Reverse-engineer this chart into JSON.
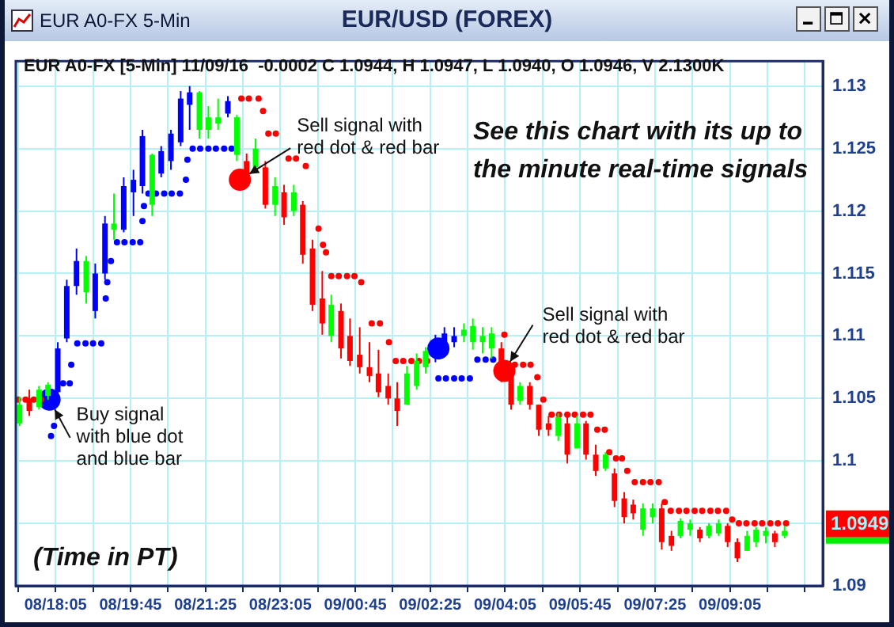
{
  "chart_data": {
    "type": "candlestick",
    "title": "EUR/USD (FOREX)",
    "subtitle": "EUR A0-FX [5-Min] 11/09/16  -0.0002 C 1.0944, H 1.0947, L 1.0940, O 1.0946, V 2.1300K",
    "annotations": [
      "EUR A0-FX 5-Min",
      "See this chart with its up to\nthe minute real-time signals",
      "(Time in PT)",
      {
        "text": "Buy signal\nwith blue dot\nand blue bar",
        "x": "--11-08T17:57",
        "y": 1.1049
      },
      {
        "text": "Sell signal with\nred dot & red bar",
        "x": "--11-08T22:11",
        "y": 1.1225
      },
      {
        "text": "Sell signal with\nred dot & red bar",
        "x": "--11-09T04:04",
        "y": 1.1072
      },
      {
        "text": "1.0949",
        "y": 1.0949
      }
    ],
    "x": [
      "--11-08T17:17",
      "--11-08T17:30",
      "--11-08T17:43",
      "--11-08T17:55",
      "--11-08T18:08",
      "--11-08T18:20",
      "--11-08T18:33",
      "--11-08T18:46",
      "--11-08T18:58",
      "--11-08T19:11",
      "--11-08T19:23",
      "--11-08T19:36",
      "--11-08T19:49",
      "--11-08T20:01",
      "--11-08T20:14",
      "--11-08T20:26",
      "--11-08T20:39",
      "--11-08T20:52",
      "--11-08T21:04",
      "--11-08T21:17",
      "--11-08T21:29",
      "--11-08T21:42",
      "--11-08T21:55",
      "--11-08T22:07",
      "--11-08T22:20",
      "--11-08T22:32",
      "--11-08T22:45",
      "--11-08T22:58",
      "--11-08T23:10",
      "--11-08T23:23",
      "--11-08T23:35",
      "--11-08T23:48",
      "--11-09T00:01",
      "--11-09T00:13",
      "--11-09T00:26",
      "--11-09T00:38",
      "--11-09T00:51",
      "--11-09T01:04",
      "--11-09T01:16",
      "--11-09T01:29",
      "--11-09T01:41",
      "--11-09T01:54",
      "--11-09T02:07",
      "--11-09T02:19",
      "--11-09T02:32",
      "--11-09T02:44",
      "--11-09T02:57",
      "--11-09T03:10",
      "--11-09T03:22",
      "--11-09T03:35",
      "--11-09T03:47",
      "--11-09T04:00",
      "--11-09T04:13",
      "--11-09T04:25",
      "--11-09T04:38",
      "--11-09T04:50",
      "--11-09T05:03",
      "--11-09T05:16",
      "--11-09T05:28",
      "--11-09T05:41",
      "--11-09T05:53",
      "--11-09T06:06",
      "--11-09T06:19",
      "--11-09T06:31",
      "--11-09T06:44",
      "--11-09T06:56",
      "--11-09T07:09",
      "--11-09T07:22",
      "--11-09T07:34",
      "--11-09T07:47",
      "--11-09T07:59",
      "--11-09T08:12",
      "--11-09T08:25",
      "--11-09T08:37",
      "--11-09T08:50",
      "--11-09T09:02",
      "--11-09T09:15",
      "--11-09T09:28",
      "--11-09T09:40",
      "--11-09T09:53",
      "--11-09T10:05",
      "--11-09T10:18"
    ],
    "ohlc": [
      [
        1.103,
        1.1051,
        1.1028,
        1.1045
      ],
      [
        1.105,
        1.1057,
        1.1036,
        1.104
      ],
      [
        1.1043,
        1.106,
        1.1041,
        1.1057
      ],
      [
        1.1052,
        1.1063,
        1.1049,
        1.1061
      ],
      [
        1.1055,
        1.1095,
        1.1051,
        1.109
      ],
      [
        1.1098,
        1.1145,
        1.1095,
        1.114
      ],
      [
        1.114,
        1.117,
        1.1133,
        1.116
      ],
      [
        1.1135,
        1.1164,
        1.1126,
        1.116
      ],
      [
        1.112,
        1.1158,
        1.1114,
        1.115
      ],
      [
        1.115,
        1.1196,
        1.1145,
        1.119
      ],
      [
        1.1185,
        1.1214,
        1.1177,
        1.119
      ],
      [
        1.1185,
        1.1227,
        1.1183,
        1.122
      ],
      [
        1.1215,
        1.1233,
        1.1196,
        1.1225
      ],
      [
        1.122,
        1.1265,
        1.1214,
        1.126
      ],
      [
        1.1205,
        1.1246,
        1.1196,
        1.1245
      ],
      [
        1.123,
        1.1252,
        1.1227,
        1.1248
      ],
      [
        1.124,
        1.1265,
        1.1233,
        1.1262
      ],
      [
        1.1255,
        1.1296,
        1.1252,
        1.129
      ],
      [
        1.1285,
        1.13,
        1.1265,
        1.1295
      ],
      [
        1.1265,
        1.1296,
        1.1258,
        1.1295
      ],
      [
        1.1265,
        1.1284,
        1.1258,
        1.1275
      ],
      [
        1.127,
        1.129,
        1.1265,
        1.1275
      ],
      [
        1.1278,
        1.1292,
        1.1275,
        1.1288
      ],
      [
        1.1245,
        1.1277,
        1.124,
        1.1275
      ],
      [
        1.124,
        1.1246,
        1.1221,
        1.1225
      ],
      [
        1.1235,
        1.1258,
        1.1233,
        1.125
      ],
      [
        1.1235,
        1.124,
        1.1202,
        1.1205
      ],
      [
        1.1205,
        1.1227,
        1.1196,
        1.122
      ],
      [
        1.1215,
        1.1221,
        1.1189,
        1.1195
      ],
      [
        1.12,
        1.1221,
        1.1196,
        1.1215
      ],
      [
        1.1205,
        1.1208,
        1.1158,
        1.1165
      ],
      [
        1.117,
        1.1177,
        1.112,
        1.1125
      ],
      [
        1.113,
        1.1152,
        1.1101,
        1.111
      ],
      [
        1.11,
        1.1133,
        1.1095,
        1.1125
      ],
      [
        1.112,
        1.1126,
        1.1082,
        1.109
      ],
      [
        1.11,
        1.1114,
        1.1076,
        1.108
      ],
      [
        1.1085,
        1.1107,
        1.107,
        1.1075
      ],
      [
        1.1075,
        1.1095,
        1.1063,
        1.1068
      ],
      [
        1.107,
        1.1089,
        1.1051,
        1.1055
      ],
      [
        1.106,
        1.107,
        1.1045,
        1.105
      ],
      [
        1.105,
        1.1063,
        1.1028,
        1.104
      ],
      [
        1.1045,
        1.1076,
        1.1045,
        1.107
      ],
      [
        1.106,
        1.1086,
        1.1057,
        1.108
      ],
      [
        1.1075,
        1.1091,
        1.107,
        1.1088
      ],
      [
        1.1085,
        1.1101,
        1.1079,
        1.1095
      ],
      [
        1.109,
        1.1107,
        1.1086,
        1.1102
      ],
      [
        1.1095,
        1.1107,
        1.1091,
        1.11
      ],
      [
        1.11,
        1.111,
        1.1095,
        1.1105
      ],
      [
        1.1095,
        1.1114,
        1.1089,
        1.1108
      ],
      [
        1.1095,
        1.1107,
        1.1086,
        1.11
      ],
      [
        1.109,
        1.1107,
        1.1082,
        1.1102
      ],
      [
        1.109,
        1.1095,
        1.1063,
        1.1068
      ],
      [
        1.1068,
        1.107,
        1.1041,
        1.1045
      ],
      [
        1.1048,
        1.1063,
        1.1045,
        1.106
      ],
      [
        1.106,
        1.1063,
        1.1041,
        1.1045
      ],
      [
        1.1045,
        1.1045,
        1.102,
        1.1025
      ],
      [
        1.103,
        1.1036,
        1.102,
        1.1025
      ],
      [
        1.102,
        1.1038,
        1.1016,
        1.1035
      ],
      [
        1.103,
        1.1036,
        1.0998,
        1.1005
      ],
      [
        1.101,
        1.1036,
        1.101,
        1.103
      ],
      [
        1.103,
        1.1032,
        1.1001,
        1.1005
      ],
      [
        1.1005,
        1.1013,
        1.0988,
        1.0992
      ],
      [
        1.0994,
        1.1007,
        1.0992,
        1.1005
      ],
      [
        1.099,
        1.0994,
        1.0963,
        1.0968
      ],
      [
        1.097,
        1.0975,
        1.095,
        1.0955
      ],
      [
        1.0965,
        1.0969,
        1.0953,
        1.0958
      ],
      [
        1.0945,
        1.0966,
        1.094,
        1.0962
      ],
      [
        1.0955,
        1.0966,
        1.095,
        1.0962
      ],
      [
        1.0962,
        1.0966,
        1.0929,
        1.0935
      ],
      [
        1.094,
        1.0944,
        1.0928,
        1.0932
      ],
      [
        1.094,
        1.0954,
        1.0938,
        1.0952
      ],
      [
        1.0945,
        1.0953,
        1.094,
        1.095
      ],
      [
        1.0945,
        1.0947,
        1.0935,
        1.0938
      ],
      [
        1.094,
        1.095,
        1.0938,
        1.0948
      ],
      [
        1.0942,
        1.0953,
        1.094,
        1.095
      ],
      [
        1.0948,
        1.095,
        1.0931,
        1.0935
      ],
      [
        1.0935,
        1.0938,
        1.0919,
        1.0922
      ],
      [
        1.0928,
        1.0944,
        1.0928,
        1.094
      ],
      [
        1.0935,
        1.0947,
        1.0931,
        1.0945
      ],
      [
        1.094,
        1.0947,
        1.0934,
        1.0944
      ],
      [
        1.0942,
        1.0944,
        1.0931,
        1.0935
      ],
      [
        1.094,
        1.0948,
        1.0938,
        1.0944
      ]
    ],
    "colors": [
      "#00ff00",
      "#ff0000",
      "#00ff00",
      "#00ff00",
      "#0000ff",
      "#0000ff",
      "#0000ff",
      "#00ff00",
      "#0000ff",
      "#0000ff",
      "#00ff00",
      "#0000ff",
      "#0000ff",
      "#0000ff",
      "#00ff00",
      "#0000ff",
      "#0000ff",
      "#0000ff",
      "#0000ff",
      "#00ff00",
      "#00ff00",
      "#00ff00",
      "#0000ff",
      "#00ff00",
      "#ff0000",
      "#00ff00",
      "#ff0000",
      "#00ff00",
      "#ff0000",
      "#00ff00",
      "#ff0000",
      "#ff0000",
      "#ff0000",
      "#00ff00",
      "#ff0000",
      "#ff0000",
      "#ff0000",
      "#ff0000",
      "#ff0000",
      "#ff0000",
      "#ff0000",
      "#00ff00",
      "#00ff00",
      "#00ff00",
      "#0000ff",
      "#0000ff",
      "#0000ff",
      "#00ff00",
      "#00ff00",
      "#00ff00",
      "#00ff00",
      "#ff0000",
      "#ff0000",
      "#00ff00",
      "#ff0000",
      "#ff0000",
      "#ff0000",
      "#00ff00",
      "#ff0000",
      "#00ff00",
      "#ff0000",
      "#ff0000",
      "#00ff00",
      "#ff0000",
      "#ff0000",
      "#ff0000",
      "#00ff00",
      "#00ff00",
      "#ff0000",
      "#ff0000",
      "#00ff00",
      "#00ff00",
      "#ff0000",
      "#00ff00",
      "#00ff00",
      "#ff0000",
      "#ff0000",
      "#00ff00",
      "#00ff00",
      "#00ff00",
      "#ff0000",
      "#00ff00"
    ],
    "series": [
      {
        "type": "scatter",
        "color": "#0000ff",
        "x": [
          "--11-08T17:59",
          "--11-08T18:03",
          "--11-08T18:15",
          "--11-08T18:24",
          "--11-08T18:26",
          "--11-08T18:34",
          "--11-08T18:45",
          "--11-08T18:55",
          "--11-08T19:06",
          "--11-08T19:12",
          "--11-08T19:14",
          "--11-08T19:19",
          "--11-08T19:27",
          "--11-08T19:37",
          "--11-08T19:48",
          "--11-08T19:58",
          "--11-08T20:01",
          "--11-08T20:03",
          "--11-08T20:09",
          "--11-08T20:19",
          "--11-08T20:30",
          "--11-08T20:40",
          "--11-08T20:51",
          "--11-08T20:59",
          "--11-08T21:01",
          "--11-08T21:08",
          "--11-08T21:18",
          "--11-08T21:29",
          "--11-08T21:39",
          "--11-08T21:50",
          "--11-08T22:00",
          "--11-08T22:07",
          "--11-09T02:36",
          "--11-09T02:46",
          "--11-09T02:57",
          "--11-09T03:07",
          "--11-09T03:18",
          "--11-09T03:28",
          "--11-09T03:39",
          "--11-09T03:49"
        ],
        "values": [
          1.102,
          1.1028,
          1.1062,
          1.1062,
          1.1077,
          1.1094,
          1.1094,
          1.1094,
          1.1094,
          1.113,
          1.1143,
          1.116,
          1.1175,
          1.1175,
          1.1175,
          1.1175,
          1.1192,
          1.1204,
          1.1214,
          1.1214,
          1.1214,
          1.1214,
          1.1214,
          1.1225,
          1.1241,
          1.125,
          1.125,
          1.125,
          1.125,
          1.125,
          1.125,
          null,
          1.1066,
          1.1066,
          1.1066,
          1.1066,
          1.1066,
          1.1081,
          1.1081,
          1.1081
        ]
      },
      {
        "type": "scatter",
        "color": "#ff0000",
        "x": [
          "--11-08T17:15",
          "--11-08T17:25",
          "--11-08T17:36",
          "--11-08T17:46",
          "--11-08T22:13",
          "--11-08T22:23",
          "--11-08T22:36",
          "--11-08T22:42",
          "--11-08T22:49",
          "--11-08T22:59",
          "--11-08T23:16",
          "--11-08T23:26",
          "--11-08T23:39",
          "--11-08T23:56",
          "--11-09T00:02",
          "--11-09T00:06",
          "--11-09T00:13",
          "--11-09T00:23",
          "--11-09T00:34",
          "--11-09T00:44",
          "--11-09T00:53",
          "--11-09T01:07",
          "--11-09T01:18",
          "--11-09T01:30",
          "--11-09T01:39",
          "--11-09T01:49",
          "--11-09T02:00",
          "--11-09T02:10",
          "--11-09T02:21",
          "--11-09T04:04",
          "--11-09T04:18",
          "--11-09T04:29",
          "--11-09T04:39",
          "--11-09T04:48",
          "--11-09T04:56",
          "--11-09T05:07",
          "--11-09T05:17",
          "--11-09T05:28",
          "--11-09T05:38",
          "--11-09T05:49",
          "--11-09T05:59",
          "--11-09T06:08",
          "--11-09T06:18",
          "--11-09T06:24",
          "--11-09T06:33",
          "--11-09T06:41",
          "--11-09T06:48",
          "--11-09T06:58",
          "--11-09T07:09",
          "--11-09T07:19",
          "--11-09T07:30",
          "--11-09T07:38",
          "--11-09T07:46",
          "--11-09T07:57",
          "--11-09T08:07",
          "--11-09T08:18",
          "--11-09T08:28",
          "--11-09T08:39",
          "--11-09T08:49",
          "--11-09T09:00",
          "--11-09T09:08",
          "--11-09T09:17",
          "--11-09T09:27",
          "--11-09T09:38",
          "--11-09T09:48",
          "--11-09T09:59",
          "--11-09T10:09",
          "--11-09T10:20"
        ],
        "values": [
          1.1049,
          1.1049,
          1.1049,
          1.1049,
          1.129,
          1.129,
          1.129,
          1.128,
          1.1262,
          1.1262,
          1.1242,
          1.1242,
          1.1236,
          1.1186,
          1.1173,
          1.1167,
          1.1148,
          1.1148,
          1.1148,
          1.1148,
          1.1143,
          1.111,
          1.111,
          1.1095,
          1.108,
          1.108,
          1.108,
          1.108,
          1.108,
          1.1101,
          1.1077,
          1.1077,
          1.1077,
          1.1067,
          1.1049,
          1.1037,
          1.1037,
          1.1037,
          1.1037,
          1.1037,
          1.1037,
          1.1025,
          1.1025,
          1.1007,
          1.1002,
          1.1002,
          1.0992,
          1.0983,
          1.0983,
          1.0983,
          1.0983,
          1.0967,
          1.096,
          1.096,
          1.096,
          1.096,
          1.096,
          1.096,
          1.096,
          1.096,
          1.0953,
          1.095,
          1.095,
          1.095,
          1.095,
          1.095,
          1.095,
          1.095
        ]
      },
      {
        "type": "bubble",
        "color": "#0000ff",
        "x": [
          "--11-08T17:57",
          "--11-09T02:36"
        ],
        "values": [
          1.1049,
          1.109
        ],
        "sizes": [
          1,
          1
        ]
      },
      {
        "type": "bubble",
        "color": "#ff0000",
        "x": [
          "--11-08T22:11",
          "--11-09T04:04"
        ],
        "values": [
          1.1225,
          1.1072
        ],
        "sizes": [
          1,
          1
        ]
      }
    ],
    "xlim": [
      "--11-08T17:12",
      "--11-09T11:09"
    ],
    "ylim": [
      1.09,
      1.132
    ],
    "xticks": [
      {
        "value": "--11-08T17:15",
        "label": null
      },
      {
        "value": "--11-08T18:05",
        "label": "08/18:05"
      },
      {
        "value": "--11-08T18:55",
        "label": null
      },
      {
        "value": "--11-08T19:45",
        "label": "08/19:45"
      },
      {
        "value": "--11-08T20:35",
        "label": null
      },
      {
        "value": "--11-08T21:25",
        "label": "08/21:25"
      },
      {
        "value": "--11-08T22:15",
        "label": null
      },
      {
        "value": "--11-08T23:05",
        "label": "08/23:05"
      },
      {
        "value": "--11-08T23:55",
        "label": null
      },
      {
        "value": "--11-09T00:45",
        "label": "09/00:45"
      },
      {
        "value": "--11-09T01:35",
        "label": null
      },
      {
        "value": "--11-09T02:25",
        "label": "09/02:25"
      },
      {
        "value": "--11-09T03:15",
        "label": null
      },
      {
        "value": "--11-09T04:05",
        "label": "09/04:05"
      },
      {
        "value": "--11-09T04:55",
        "label": null
      },
      {
        "value": "--11-09T05:45",
        "label": "09/05:45"
      },
      {
        "value": "--11-09T06:35",
        "label": null
      },
      {
        "value": "--11-09T07:25",
        "label": "09/07:25"
      },
      {
        "value": "--11-09T08:15",
        "label": null
      },
      {
        "value": "--11-09T09:05",
        "label": "09/09:05"
      },
      {
        "value": "--11-09T09:55",
        "label": null
      },
      {
        "value": "--11-09T10:45",
        "label": null
      }
    ],
    "yticks": [
      1.09,
      {
        "value": 1.095,
        "label": null
      },
      1.1,
      1.105,
      1.11,
      1.115,
      1.12,
      1.125,
      1.13
    ],
    "grid": true,
    "marker": "circle"
  }
}
